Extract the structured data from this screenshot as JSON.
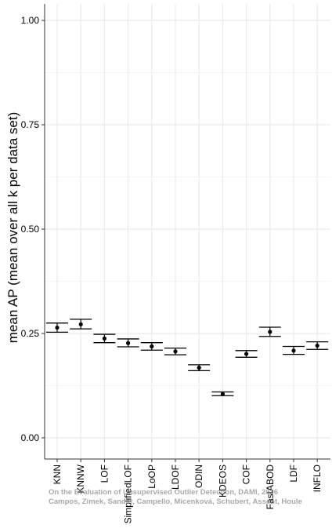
{
  "chart_data": {
    "type": "errorbar",
    "xlabel": "",
    "ylabel": "mean AP (mean over all k per data set)",
    "ylim": [
      0,
      1.0
    ],
    "yticks": [
      "0.00",
      "0.25",
      "0.50",
      "0.75",
      "1.00"
    ],
    "ytick_values": [
      0,
      0.25,
      0.5,
      0.75,
      1.0
    ],
    "grid": true,
    "categories": [
      "KNN",
      "KNNW",
      "LOF",
      "SimplifiedLOF",
      "LoOP",
      "LDOF",
      "ODIN",
      "KDEOS",
      "COF",
      "FastABOD",
      "LDF",
      "INFLO"
    ],
    "series": [
      {
        "mean": [
          0.264,
          0.272,
          0.238,
          0.227,
          0.219,
          0.207,
          0.168,
          0.105,
          0.201,
          0.254,
          0.209,
          0.221
        ],
        "upper": [
          0.275,
          0.284,
          0.248,
          0.237,
          0.228,
          0.215,
          0.175,
          0.11,
          0.209,
          0.265,
          0.219,
          0.23
        ],
        "lower": [
          0.253,
          0.261,
          0.228,
          0.218,
          0.21,
          0.199,
          0.161,
          0.101,
          0.193,
          0.243,
          0.2,
          0.212
        ]
      }
    ],
    "colors": {
      "mark": "#000000",
      "grid": "#ebebeb",
      "axis": "#333333"
    }
  },
  "watermark": {
    "line1": "On the Evaluation of Unsupervised Outlier Detection, DAMI, 2016",
    "line2": "Campos, Zimek, Sander, Campello, Micenková, Schubert, Assent, Houle"
  }
}
